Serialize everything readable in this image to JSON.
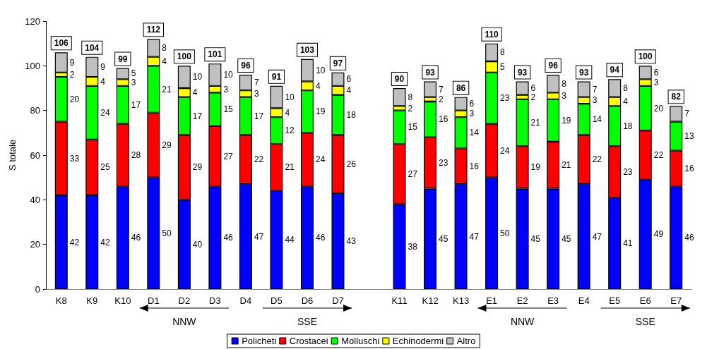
{
  "chart_data": {
    "type": "bar",
    "stacked": true,
    "ylabel": "S totale",
    "categories": [
      "K8",
      "K9",
      "K10",
      "D1",
      "D2",
      "D3",
      "D4",
      "D5",
      "D6",
      "D7",
      null,
      "K11",
      "K12",
      "K13",
      "E1",
      "E2",
      "E3",
      "E4",
      "E5",
      "E6",
      "E7"
    ],
    "series": [
      {
        "name": "Policheti",
        "color": "#0000ff",
        "values": [
          42,
          42,
          46,
          50,
          40,
          46,
          47,
          44,
          46,
          43,
          null,
          38,
          45,
          47,
          50,
          45,
          45,
          47,
          41,
          49,
          46
        ]
      },
      {
        "name": "Crostacei",
        "color": "#ff0000",
        "values": [
          33,
          25,
          28,
          29,
          29,
          27,
          22,
          21,
          24,
          26,
          null,
          27,
          23,
          16,
          24,
          19,
          21,
          22,
          23,
          22,
          16
        ]
      },
      {
        "name": "Molluschi",
        "color": "#00ff00",
        "values": [
          20,
          24,
          17,
          21,
          17,
          15,
          17,
          12,
          19,
          18,
          null,
          15,
          16,
          14,
          23,
          21,
          19,
          14,
          18,
          20,
          13
        ]
      },
      {
        "name": "Echinodermi",
        "color": "#ffff00",
        "values": [
          2,
          4,
          3,
          4,
          4,
          3,
          3,
          4,
          4,
          4,
          null,
          2,
          2,
          3,
          5,
          2,
          3,
          3,
          4,
          3,
          null
        ]
      },
      {
        "name": "Altro",
        "color": "#c0c0c0",
        "values": [
          9,
          9,
          5,
          8,
          10,
          10,
          7,
          10,
          10,
          6,
          null,
          8,
          7,
          6,
          8,
          6,
          8,
          7,
          8,
          6,
          7
        ]
      }
    ],
    "totals": [
      "106",
      "104",
      "99",
      "112",
      "100",
      "101",
      "96",
      "91",
      "103",
      "97",
      null,
      "90",
      "93",
      "86",
      "110",
      "93",
      "96",
      "93",
      "94",
      "100",
      "82"
    ],
    "ylim": [
      0,
      120
    ],
    "yticks": [
      0,
      20,
      40,
      60,
      80,
      100,
      120
    ],
    "data_labels": true,
    "grid": false,
    "legend": "bottom",
    "annotations": [
      "NNW",
      "SSE",
      "NNW",
      "SSE"
    ]
  }
}
